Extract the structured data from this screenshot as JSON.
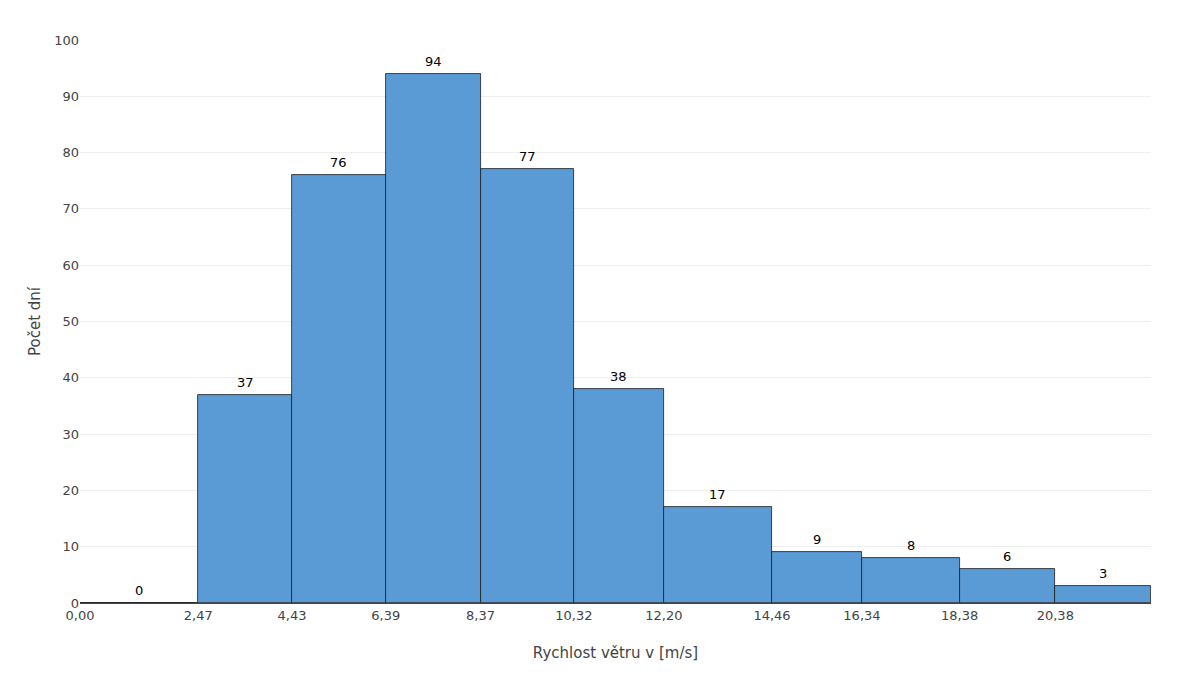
{
  "chart_data": {
    "type": "histogram",
    "xlabel": "Rychlost větru v [m/s]",
    "ylabel": "Počet dní",
    "bins": [
      0.0,
      2.47,
      4.43,
      6.39,
      8.37,
      10.32,
      12.2,
      14.46,
      16.34,
      18.38,
      20.38,
      22.38
    ],
    "values": [
      0,
      37,
      76,
      94,
      77,
      38,
      17,
      9,
      8,
      6,
      3
    ],
    "color": "#5B9BD5",
    "data_labels": true,
    "xlim": [
      0.0,
      22.38
    ],
    "xticks": [
      {
        "value": 0.0,
        "label": "0,00"
      },
      {
        "value": 2.47,
        "label": "2,47"
      },
      {
        "value": 4.43,
        "label": "4,43"
      },
      {
        "value": 6.39,
        "label": "6,39"
      },
      {
        "value": 8.37,
        "label": "8,37"
      },
      {
        "value": 10.32,
        "label": "10,32"
      },
      {
        "value": 12.2,
        "label": "12,20"
      },
      {
        "value": 14.46,
        "label": "14,46"
      },
      {
        "value": 16.34,
        "label": "16,34"
      },
      {
        "value": 18.38,
        "label": "18,38"
      },
      {
        "value": 20.38,
        "label": "20,38"
      }
    ],
    "ylim": [
      0,
      100
    ],
    "yticks": [
      0,
      10,
      20,
      30,
      40,
      50,
      60,
      70,
      80,
      90,
      100
    ],
    "grid": true
  }
}
